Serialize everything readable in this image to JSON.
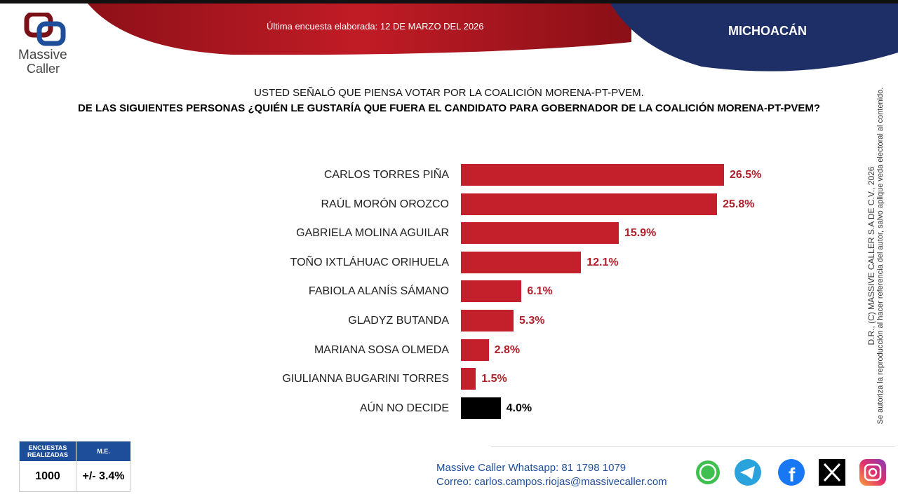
{
  "header": {
    "date_text": "Última encuesta elaborada: 12 DE MARZO DEL 2026",
    "state": "MICHOACÁN",
    "logo": "Massive Caller"
  },
  "question": {
    "line1": "USTED SEÑALÓ QUE PIENSA VOTAR POR LA COALICIÓN MORENA-PT-PVEM.",
    "line2": "DE LAS SIGUIENTES PERSONAS ¿QUIÉN LE GUSTARÍA QUE FUERA EL CANDIDATO PARA GOBERNADOR DE LA COALICIÓN MORENA-PT-PVEM?"
  },
  "chart_data": {
    "type": "bar",
    "orientation": "horizontal",
    "categories": [
      "CARLOS TORRES PIÑA",
      "RAÚL MORÓN OROZCO",
      "GABRIELA MOLINA AGUILAR",
      "TOÑO IXTLÁHUAC ORIHUELA",
      "FABIOLA ALANÍS SÁMANO",
      "GLADYZ BUTANDA",
      "MARIANA SOSA OLMEDA",
      "GIULIANNA BUGARINI TORRES",
      "AÚN NO DECIDE"
    ],
    "values": [
      26.5,
      25.8,
      15.9,
      12.1,
      6.1,
      5.3,
      2.8,
      1.5,
      4.0
    ],
    "labels": [
      "26.5%",
      "25.8%",
      "15.9%",
      "12.1%",
      "6.1%",
      "5.3%",
      "2.8%",
      "1.5%",
      "4.0%"
    ],
    "colors": [
      "#c4202b",
      "#c4202b",
      "#c4202b",
      "#c4202b",
      "#c4202b",
      "#c4202b",
      "#c4202b",
      "#c4202b",
      "#000000"
    ],
    "label_colors": [
      "#b0202a",
      "#b0202a",
      "#b0202a",
      "#b0202a",
      "#b0202a",
      "#b0202a",
      "#b0202a",
      "#b0202a",
      "#000000"
    ],
    "unit": "%"
  },
  "side_note": {
    "line1": "D.R., (C) MASSIVE CALLER S.A DE C.V., 2026",
    "line2": "Se autoriza la reproducción al hacer referencia del autor, salvo aplique veda electoral al contenido."
  },
  "stats": {
    "surveys_label": "ENCUESTAS REALIZADAS",
    "surveys_value": "1000",
    "me_label": "M.E.",
    "me_value": "+/- 3.4%"
  },
  "contact": {
    "whatsapp": "Massive Caller Whatsapp: 81 1798 1079",
    "email": "Correo: carlos.campos.riojas@massivecaller.com"
  },
  "social": [
    "whatsapp-icon",
    "telegram-icon",
    "facebook-icon",
    "x-icon",
    "instagram-icon"
  ]
}
